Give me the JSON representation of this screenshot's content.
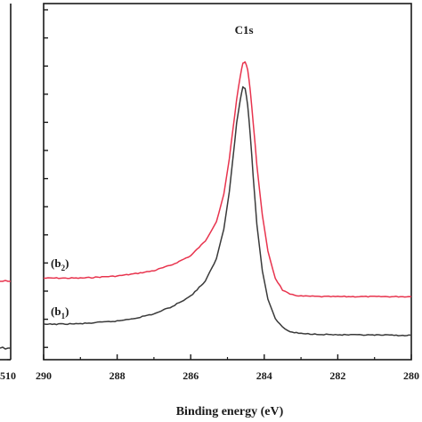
{
  "chart_data": [
    {
      "type": "line",
      "panel": "left (cropped)",
      "x_tick_labels": [
        "510"
      ],
      "series": [
        {
          "color": "#e8344e",
          "level": "flat baseline"
        },
        {
          "color": "#3a3a3a",
          "level": "flat baseline"
        }
      ]
    },
    {
      "type": "line",
      "xlabel": "Binding energy (eV)",
      "ylabel": "",
      "x_axis_reversed": true,
      "xlim": [
        290,
        280
      ],
      "x_ticks": [
        290,
        288,
        286,
        284,
        282,
        280
      ],
      "x_tick_labels": [
        "290",
        "288",
        "286",
        "284",
        "282",
        "280"
      ],
      "y_ticks_unlabeled": true,
      "ylim": [
        0,
        100
      ],
      "grid": false,
      "annotations": [
        {
          "text": "C1s",
          "x": 284.55,
          "y": 98
        },
        {
          "text": "(b",
          "sub": "2",
          "tail": ")",
          "x": 289.75,
          "y": 28
        },
        {
          "text": "(b",
          "sub": "1",
          "tail": ")",
          "x": 289.75,
          "y": 10
        }
      ],
      "series": [
        {
          "id": "b2",
          "color": "#e8344e",
          "x": [
            290.0,
            289.0,
            288.0,
            287.5,
            287.0,
            286.5,
            286.0,
            285.6,
            285.3,
            285.1,
            284.95,
            284.85,
            284.75,
            284.65,
            284.58,
            284.52,
            284.45,
            284.38,
            284.3,
            284.2,
            284.05,
            283.9,
            283.7,
            283.5,
            283.3,
            283.0,
            282.5,
            282.0,
            281.0,
            280.0
          ],
          "y": [
            16.0,
            16.0,
            16.7,
            17.5,
            18.5,
            20.5,
            23.5,
            28.5,
            35.0,
            44.0,
            56.0,
            66.0,
            76.0,
            84.0,
            88.0,
            88.5,
            86.0,
            79.0,
            68.0,
            54.0,
            37.0,
            25.0,
            16.0,
            12.0,
            10.5,
            10.0,
            9.8,
            9.8,
            9.8,
            9.8
          ]
        },
        {
          "id": "b1",
          "color": "#3a3a3a",
          "x": [
            290.0,
            289.0,
            288.0,
            287.5,
            287.0,
            286.5,
            286.0,
            285.6,
            285.3,
            285.1,
            284.95,
            284.85,
            284.75,
            284.65,
            284.58,
            284.52,
            284.45,
            284.38,
            284.3,
            284.2,
            284.05,
            283.9,
            283.7,
            283.5,
            283.3,
            283.0,
            282.5,
            282.0,
            281.0,
            280.0
          ],
          "y": [
            0.5,
            0.7,
            1.6,
            2.6,
            4.0,
            6.5,
            10.0,
            15.0,
            22.5,
            32.5,
            45.0,
            56.5,
            68.0,
            76.0,
            80.2,
            79.5,
            74.0,
            64.0,
            50.0,
            34.0,
            18.5,
            9.0,
            2.5,
            -0.5,
            -2.0,
            -2.6,
            -2.8,
            -3.0,
            -3.1,
            -3.2
          ]
        }
      ]
    }
  ]
}
